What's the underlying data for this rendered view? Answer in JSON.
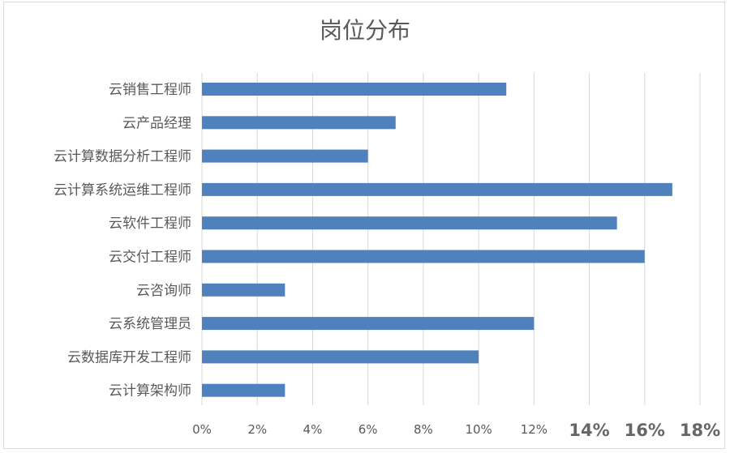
{
  "chart_data": {
    "type": "bar",
    "orientation": "horizontal",
    "title": "岗位分布",
    "categories": [
      "云销售工程师",
      "云产品经理",
      "云计算数据分析工程师",
      "云计算系统运维工程师",
      "云软件工程师",
      "云交付工程师",
      "云咨询师",
      "云系统管理员",
      "云数据库开发工程师",
      "云计算架构师"
    ],
    "values": [
      11,
      7,
      6,
      17,
      15,
      16,
      3,
      12,
      10,
      3
    ],
    "unit": "%",
    "xlim": [
      0,
      18
    ],
    "x_ticks": [
      "0%",
      "2%",
      "4%",
      "6%",
      "8%",
      "10%",
      "12%",
      "14%",
      "16%",
      "18%"
    ],
    "grid": true,
    "legend": "none",
    "bar_color": "#4f81bd"
  }
}
